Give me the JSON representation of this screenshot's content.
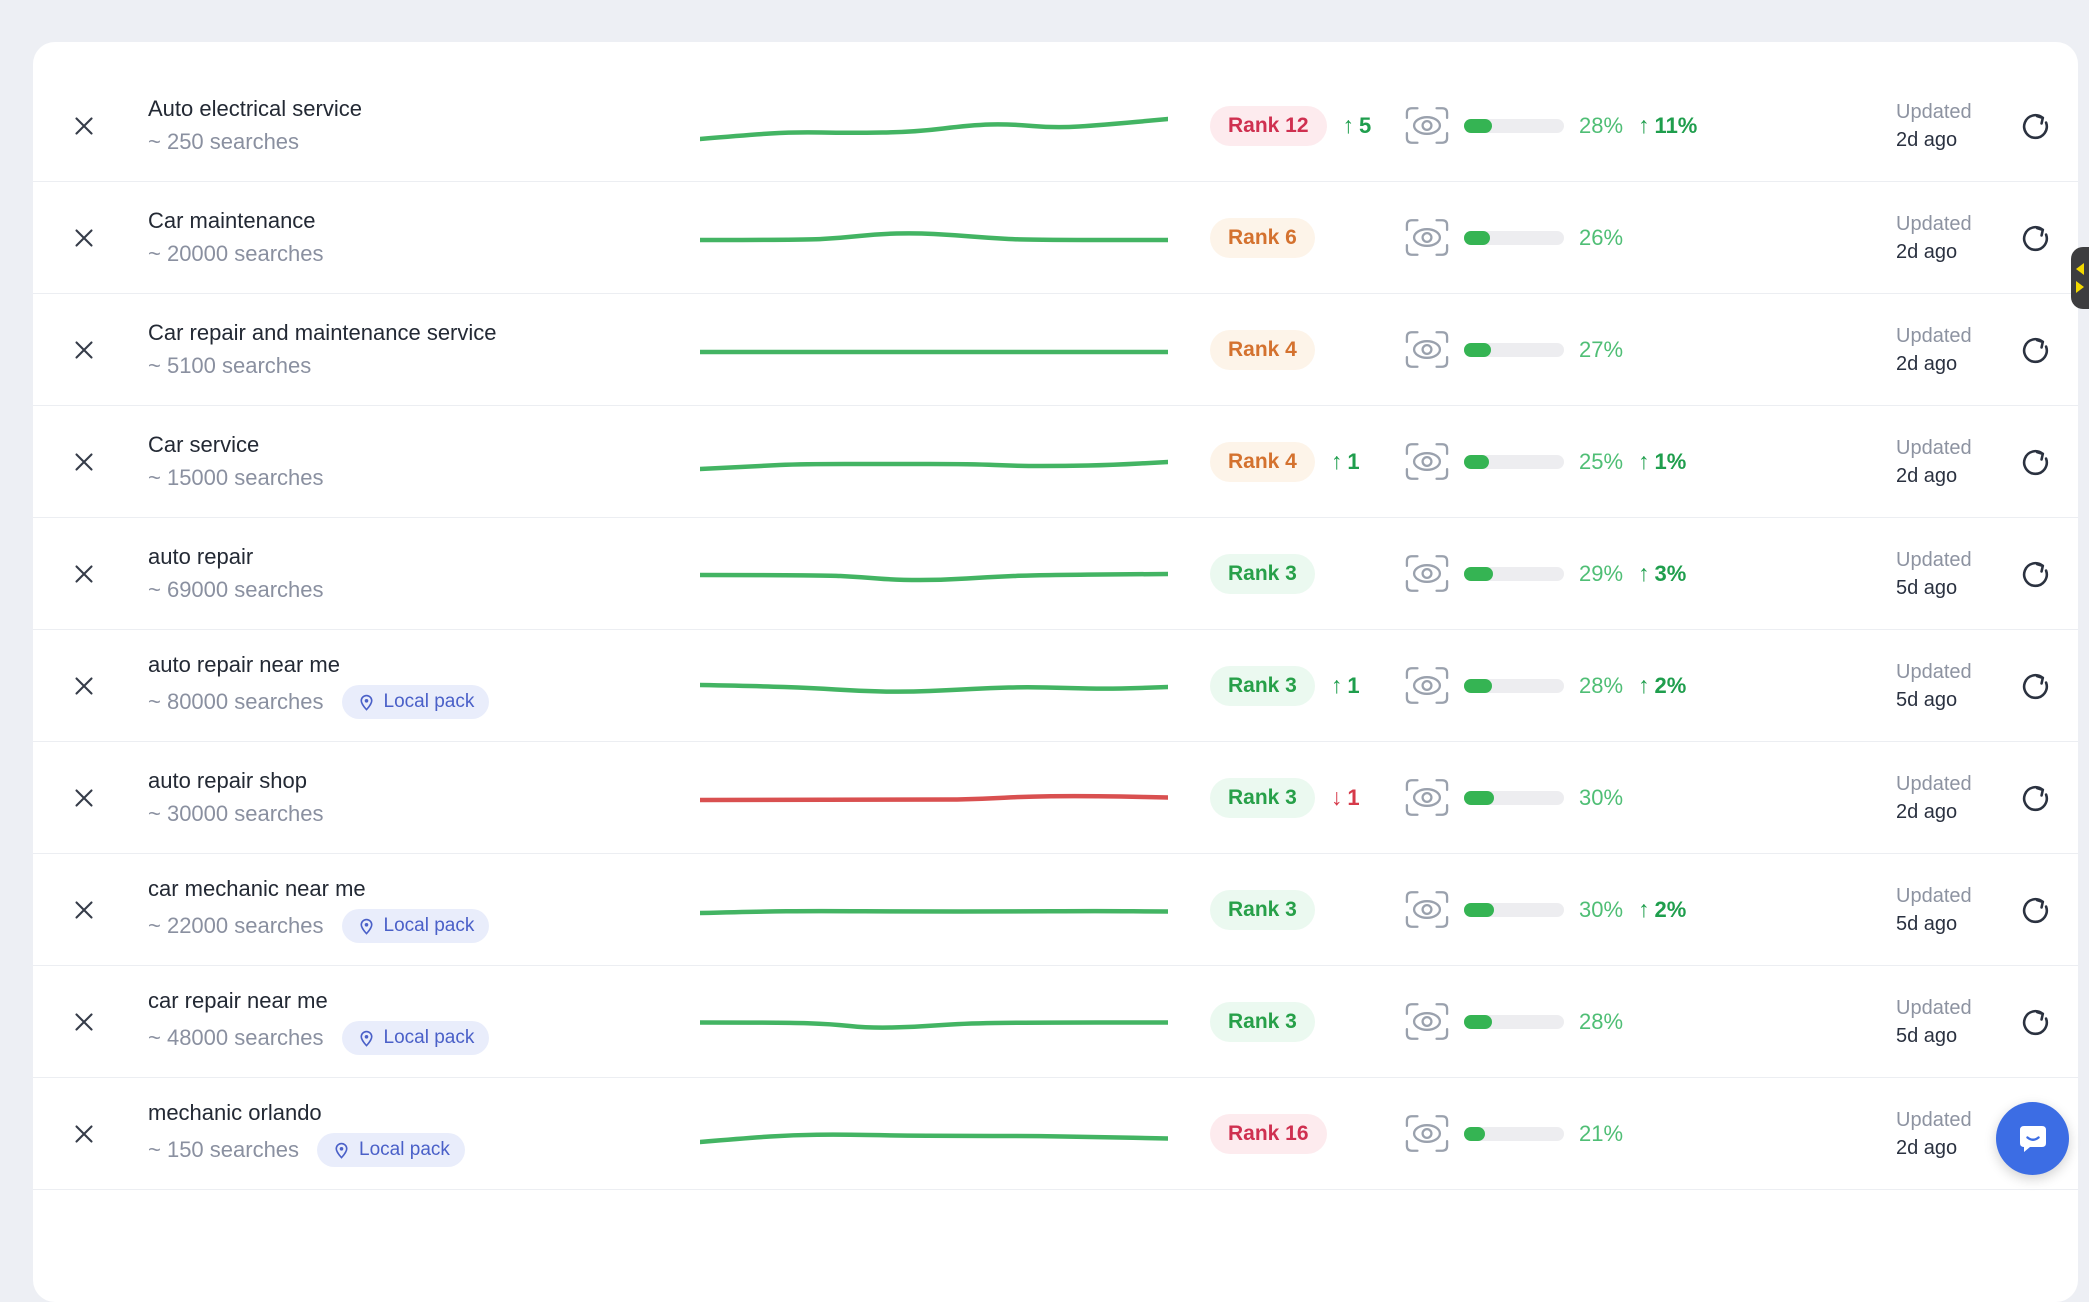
{
  "labels": {
    "updated": "Updated",
    "local_pack": "Local pack"
  },
  "icons": {
    "up_arrow": "↑",
    "down_arrow": "↓"
  },
  "colors": {
    "green_line": "#43b463",
    "red_line": "#d95050",
    "bar_fill": "#35b453",
    "chat_button": "#3c6de4",
    "side_tab": "#3d3d3f",
    "side_tab_accent": "#f2d800"
  },
  "rows": [
    {
      "keyword": "Auto electrical service",
      "volume": "~ 250 searches",
      "local_pack": false,
      "sparkline": {
        "color": "green_line",
        "points": [
          [
            0,
            31
          ],
          [
            10,
            27
          ],
          [
            20,
            24
          ],
          [
            32,
            25
          ],
          [
            46,
            24
          ],
          [
            58,
            17
          ],
          [
            66,
            16
          ],
          [
            76,
            20
          ],
          [
            86,
            17
          ],
          [
            100,
            11
          ]
        ]
      },
      "rank": {
        "label": "Rank 12",
        "tone": "red",
        "change": "5",
        "change_dir": "up"
      },
      "visibility": {
        "percent": "28%",
        "fill": 28,
        "change": "11%",
        "change_dir": "up"
      },
      "updated_ago": "2d ago"
    },
    {
      "keyword": "Car maintenance",
      "volume": "~ 20000 searches",
      "local_pack": false,
      "sparkline": {
        "color": "green_line",
        "points": [
          [
            0,
            20
          ],
          [
            22,
            20
          ],
          [
            30,
            18
          ],
          [
            38,
            14
          ],
          [
            46,
            13
          ],
          [
            54,
            15
          ],
          [
            62,
            18
          ],
          [
            70,
            20
          ],
          [
            100,
            20
          ]
        ]
      },
      "rank": {
        "label": "Rank 6",
        "tone": "orange",
        "change": "",
        "change_dir": ""
      },
      "visibility": {
        "percent": "26%",
        "fill": 26,
        "change": "",
        "change_dir": ""
      },
      "updated_ago": "2d ago"
    },
    {
      "keyword": "Car repair and maintenance service",
      "volume": "~ 5100 searches",
      "local_pack": false,
      "sparkline": {
        "color": "green_line",
        "points": [
          [
            0,
            20
          ],
          [
            100,
            20
          ]
        ]
      },
      "rank": {
        "label": "Rank 4",
        "tone": "orange",
        "change": "",
        "change_dir": ""
      },
      "visibility": {
        "percent": "27%",
        "fill": 27,
        "change": "",
        "change_dir": ""
      },
      "updated_ago": "2d ago"
    },
    {
      "keyword": "Car service",
      "volume": "~ 15000 searches",
      "local_pack": false,
      "sparkline": {
        "color": "green_line",
        "points": [
          [
            0,
            25
          ],
          [
            12,
            22
          ],
          [
            22,
            20
          ],
          [
            40,
            20
          ],
          [
            58,
            20
          ],
          [
            68,
            22
          ],
          [
            78,
            22
          ],
          [
            88,
            21
          ],
          [
            100,
            18
          ]
        ]
      },
      "rank": {
        "label": "Rank 4",
        "tone": "orange",
        "change": "1",
        "change_dir": "up"
      },
      "visibility": {
        "percent": "25%",
        "fill": 25,
        "change": "1%",
        "change_dir": "up"
      },
      "updated_ago": "2d ago"
    },
    {
      "keyword": "auto repair",
      "volume": "~ 69000 searches",
      "local_pack": false,
      "sparkline": {
        "color": "green_line",
        "points": [
          [
            0,
            19
          ],
          [
            26,
            19
          ],
          [
            34,
            21
          ],
          [
            42,
            24
          ],
          [
            52,
            24
          ],
          [
            62,
            21
          ],
          [
            72,
            19
          ],
          [
            100,
            18
          ]
        ]
      },
      "rank": {
        "label": "Rank 3",
        "tone": "green",
        "change": "",
        "change_dir": ""
      },
      "visibility": {
        "percent": "29%",
        "fill": 29,
        "change": "3%",
        "change_dir": "up"
      },
      "updated_ago": "5d ago"
    },
    {
      "keyword": "auto repair near me",
      "volume": "~ 80000 searches",
      "local_pack": true,
      "sparkline": {
        "color": "green_line",
        "points": [
          [
            0,
            17
          ],
          [
            12,
            18
          ],
          [
            24,
            20
          ],
          [
            34,
            23
          ],
          [
            44,
            24
          ],
          [
            54,
            22
          ],
          [
            62,
            20
          ],
          [
            70,
            19
          ],
          [
            78,
            20
          ],
          [
            88,
            21
          ],
          [
            100,
            19
          ]
        ]
      },
      "rank": {
        "label": "Rank 3",
        "tone": "green",
        "change": "1",
        "change_dir": "up"
      },
      "visibility": {
        "percent": "28%",
        "fill": 28,
        "change": "2%",
        "change_dir": "up"
      },
      "updated_ago": "5d ago"
    },
    {
      "keyword": "auto repair shop",
      "volume": "~ 30000 searches",
      "local_pack": false,
      "sparkline": {
        "color": "red_line",
        "points": [
          [
            0,
            20
          ],
          [
            50,
            20
          ],
          [
            60,
            19
          ],
          [
            70,
            16.5
          ],
          [
            80,
            16
          ],
          [
            90,
            16.5
          ],
          [
            100,
            17.5
          ]
        ]
      },
      "rank": {
        "label": "Rank 3",
        "tone": "green",
        "change": "1",
        "change_dir": "down"
      },
      "visibility": {
        "percent": "30%",
        "fill": 30,
        "change": "",
        "change_dir": ""
      },
      "updated_ago": "2d ago"
    },
    {
      "keyword": "car mechanic near me",
      "volume": "~ 22000 searches",
      "local_pack": true,
      "sparkline": {
        "color": "green_line",
        "points": [
          [
            0,
            21
          ],
          [
            12,
            19.5
          ],
          [
            25,
            19
          ],
          [
            45,
            19.5
          ],
          [
            65,
            19.5
          ],
          [
            85,
            19
          ],
          [
            100,
            19.5
          ]
        ]
      },
      "rank": {
        "label": "Rank 3",
        "tone": "green",
        "change": "",
        "change_dir": ""
      },
      "visibility": {
        "percent": "30%",
        "fill": 30,
        "change": "2%",
        "change_dir": "up"
      },
      "updated_ago": "5d ago"
    },
    {
      "keyword": "car repair near me",
      "volume": "~ 48000 searches",
      "local_pack": true,
      "sparkline": {
        "color": "green_line",
        "points": [
          [
            0,
            18.5
          ],
          [
            18,
            18.5
          ],
          [
            28,
            20
          ],
          [
            36,
            24
          ],
          [
            46,
            23
          ],
          [
            56,
            19.5
          ],
          [
            70,
            18.5
          ],
          [
            100,
            18.5
          ]
        ]
      },
      "rank": {
        "label": "Rank 3",
        "tone": "green",
        "change": "",
        "change_dir": ""
      },
      "visibility": {
        "percent": "28%",
        "fill": 28,
        "change": "",
        "change_dir": ""
      },
      "updated_ago": "5d ago"
    },
    {
      "keyword": "mechanic orlando",
      "volume": "~ 150 searches",
      "local_pack": true,
      "sparkline": {
        "color": "green_line",
        "points": [
          [
            0,
            26
          ],
          [
            10,
            22
          ],
          [
            20,
            19
          ],
          [
            30,
            18.5
          ],
          [
            42,
            19.5
          ],
          [
            55,
            20
          ],
          [
            70,
            20
          ],
          [
            85,
            21
          ],
          [
            100,
            22.5
          ]
        ]
      },
      "rank": {
        "label": "Rank 16",
        "tone": "red",
        "change": "",
        "change_dir": ""
      },
      "visibility": {
        "percent": "21%",
        "fill": 21,
        "change": "",
        "change_dir": ""
      },
      "updated_ago": "2d ago"
    }
  ]
}
